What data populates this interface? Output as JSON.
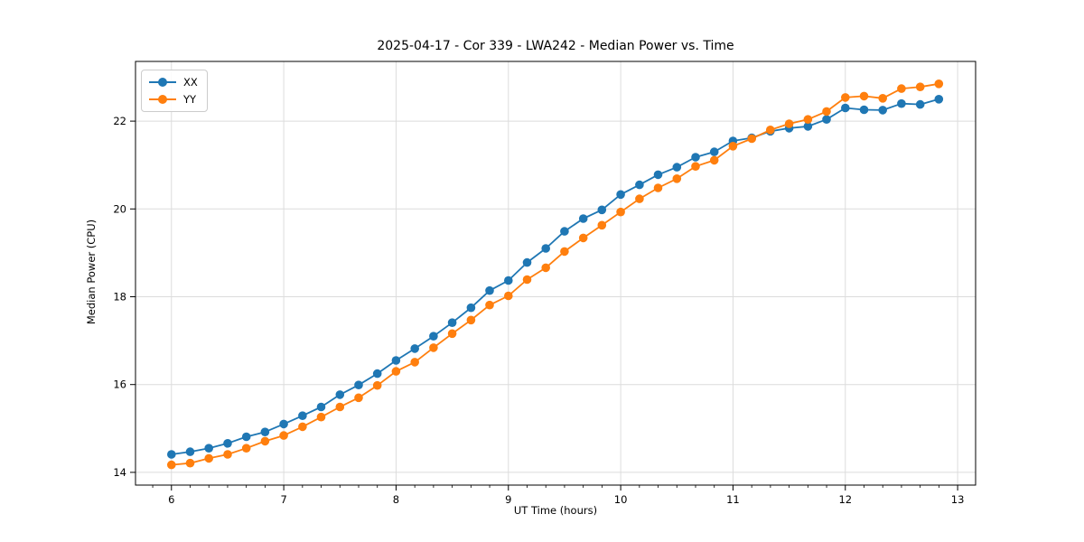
{
  "chart_data": {
    "type": "line",
    "title": "2025-04-17 - Cor 339 - LWA242 - Median Power vs. Time",
    "xlabel": "UT Time (hours)",
    "ylabel": "Median Power (CPU)",
    "xlim": [
      5.68,
      13.16
    ],
    "ylim": [
      13.71,
      23.36
    ],
    "xticks": [
      6,
      7,
      8,
      9,
      10,
      11,
      12,
      13
    ],
    "yticks": [
      14,
      16,
      18,
      20,
      22
    ],
    "grid": true,
    "legend_position": "upper-left",
    "x": [
      6.0,
      6.167,
      6.333,
      6.5,
      6.667,
      6.833,
      7.0,
      7.167,
      7.333,
      7.5,
      7.667,
      7.833,
      8.0,
      8.167,
      8.333,
      8.5,
      8.667,
      8.833,
      9.0,
      9.167,
      9.333,
      9.5,
      9.667,
      9.833,
      10.0,
      10.167,
      10.333,
      10.5,
      10.667,
      10.833,
      11.0,
      11.167,
      11.333,
      11.5,
      11.667,
      11.833,
      12.0,
      12.167,
      12.333,
      12.5,
      12.667,
      12.833
    ],
    "series": [
      {
        "name": "XX",
        "color": "#1f77b4",
        "values": [
          14.41,
          14.47,
          14.55,
          14.66,
          14.81,
          14.92,
          15.1,
          15.29,
          15.49,
          15.77,
          15.99,
          16.25,
          16.55,
          16.82,
          17.1,
          17.41,
          17.75,
          18.14,
          18.37,
          18.78,
          19.1,
          19.49,
          19.78,
          19.98,
          20.33,
          20.55,
          20.78,
          20.95,
          21.18,
          21.3,
          21.55,
          21.62,
          21.77,
          21.84,
          21.88,
          22.04,
          22.3,
          22.26,
          22.25,
          22.4,
          22.38,
          22.5
        ]
      },
      {
        "name": "YY",
        "color": "#ff7f0e",
        "values": [
          14.17,
          14.21,
          14.32,
          14.41,
          14.55,
          14.71,
          14.84,
          15.04,
          15.26,
          15.49,
          15.7,
          15.98,
          16.3,
          16.51,
          16.84,
          17.16,
          17.47,
          17.81,
          18.02,
          18.39,
          18.66,
          19.03,
          19.34,
          19.63,
          19.93,
          20.23,
          20.48,
          20.69,
          20.97,
          21.11,
          21.43,
          21.6,
          21.8,
          21.94,
          22.04,
          22.22,
          22.54,
          22.57,
          22.52,
          22.74,
          22.78,
          22.85
        ]
      }
    ],
    "grid_color": "#dcdcdc",
    "spine_color": "#000000",
    "text_color": "#000000"
  }
}
